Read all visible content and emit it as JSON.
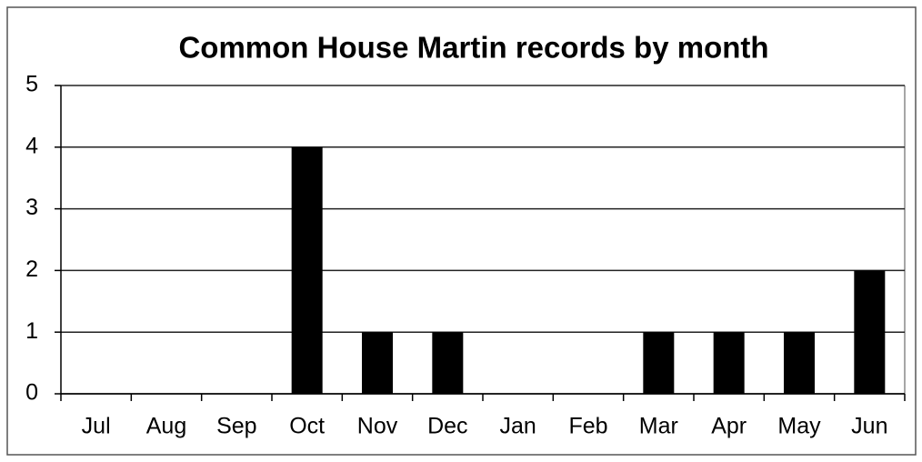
{
  "chart_data": {
    "type": "bar",
    "title": "Common House Martin records by month",
    "categories": [
      "Jul",
      "Aug",
      "Sep",
      "Oct",
      "Nov",
      "Dec",
      "Jan",
      "Feb",
      "Mar",
      "Apr",
      "May",
      "Jun"
    ],
    "values": [
      0,
      0,
      0,
      4,
      1,
      1,
      0,
      0,
      1,
      1,
      1,
      2
    ],
    "color": "#000000",
    "ylim": [
      0,
      5
    ],
    "yticks": [
      0,
      1,
      2,
      3,
      4,
      5
    ],
    "grid": true
  }
}
